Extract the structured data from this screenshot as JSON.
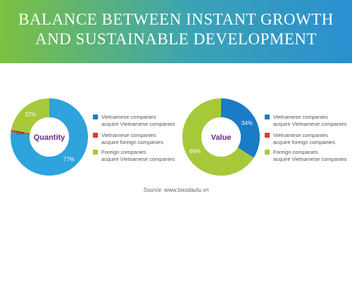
{
  "header": {
    "title_line1": "BALANCE BETWEEN INSTANT GROWTH",
    "title_line2": "AND SUSTAINABLE DEVELOPMENT",
    "gradient_start": "#7cc142",
    "gradient_end": "#2a8fd0"
  },
  "colors": {
    "blue": "#1a7cc6",
    "light_blue": "#2ea3dc",
    "red": "#e23a2f",
    "green": "#a6c93a",
    "center_text": "#6b2a8a"
  },
  "legend": {
    "items": [
      {
        "line1": "Vietnamese companies",
        "line2": "acquire Vietnamese companies",
        "color": "#1a7cc6"
      },
      {
        "line1": "Vietnamese companies",
        "line2": "acquire foreign companies",
        "color": "#e23a2f"
      },
      {
        "line1": "Foreign companies",
        "line2": "acquire Vietnamese companies",
        "color": "#a6c93a"
      }
    ]
  },
  "source": "Source: www.baodautu.vn",
  "chart_data": [
    {
      "type": "pie",
      "center_label": "Quantity",
      "categories": [
        "Vietnamese companies acquire Vietnamese companies",
        "Vietnamese companies acquire foreign companies",
        "Foreign companies acquire Vietnamese companies"
      ],
      "values": [
        77,
        1,
        22
      ],
      "labels": [
        "77%",
        "1%",
        "22%"
      ]
    },
    {
      "type": "pie",
      "center_label": "Value",
      "categories": [
        "Vietnamese companies acquire Vietnamese companies",
        "Vietnamese companies acquire foreign companies",
        "Foreign companies acquire Vietnamese companies"
      ],
      "values": [
        34,
        0,
        66
      ],
      "labels": [
        "34%",
        "",
        "66%"
      ]
    }
  ]
}
